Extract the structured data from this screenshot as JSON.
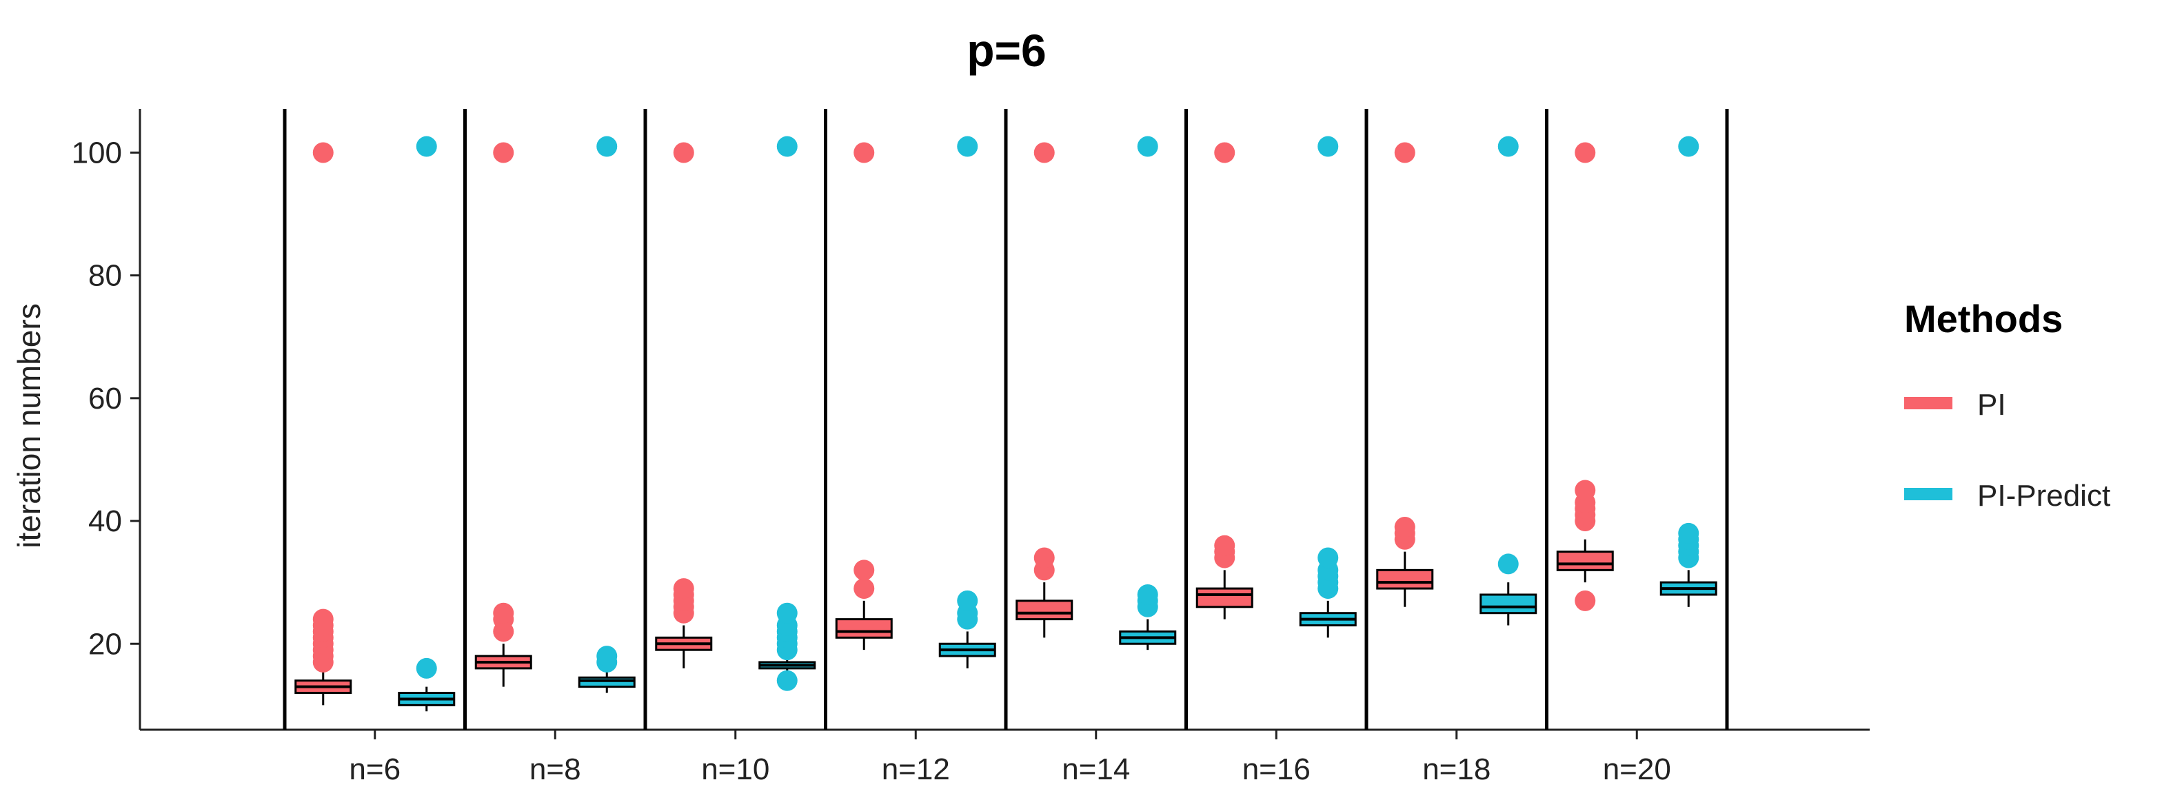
{
  "chart_data": {
    "type": "boxplot",
    "title": "p=6",
    "xlabel": "",
    "ylabel": "iteration numbers",
    "ylim": [
      6,
      106
    ],
    "yticks": [
      20,
      40,
      60,
      80,
      100
    ],
    "categories": [
      "n=6",
      "n=8",
      "n=10",
      "n=12",
      "n=14",
      "n=16",
      "n=18",
      "n=20"
    ],
    "legend": {
      "title": "Methods",
      "position": "right"
    },
    "series": [
      {
        "name": "PI",
        "color": "#F8636B",
        "boxes": [
          {
            "q1": 12,
            "median": 13,
            "q3": 14,
            "whisker_low": 10,
            "whisker_high": 16,
            "outliers": [
              17,
              18,
              19,
              20,
              21,
              22,
              23,
              24,
              100
            ]
          },
          {
            "q1": 16,
            "median": 17,
            "q3": 18,
            "whisker_low": 13,
            "whisker_high": 20,
            "outliers": [
              22,
              24,
              25,
              100
            ]
          },
          {
            "q1": 19,
            "median": 20,
            "q3": 21,
            "whisker_low": 16,
            "whisker_high": 23,
            "outliers": [
              25,
              26,
              27,
              28,
              29,
              100
            ]
          },
          {
            "q1": 21,
            "median": 22,
            "q3": 24,
            "whisker_low": 19,
            "whisker_high": 27,
            "outliers": [
              29,
              32,
              100
            ]
          },
          {
            "q1": 24,
            "median": 25,
            "q3": 27,
            "whisker_low": 21,
            "whisker_high": 30,
            "outliers": [
              32,
              34,
              100
            ]
          },
          {
            "q1": 26,
            "median": 28,
            "q3": 29,
            "whisker_low": 24,
            "whisker_high": 32,
            "outliers": [
              34,
              35,
              36,
              100
            ]
          },
          {
            "q1": 29,
            "median": 30,
            "q3": 32,
            "whisker_low": 26,
            "whisker_high": 35,
            "outliers": [
              37,
              38,
              39,
              100
            ]
          },
          {
            "q1": 32,
            "median": 33,
            "q3": 35,
            "whisker_low": 30,
            "whisker_high": 37,
            "outliers": [
              27,
              40,
              41,
              42,
              43,
              45,
              100
            ]
          }
        ]
      },
      {
        "name": "PI-Predict",
        "color": "#1FBFD9",
        "boxes": [
          {
            "q1": 10,
            "median": 11,
            "q3": 12,
            "whisker_low": 9,
            "whisker_high": 13,
            "outliers": [
              16,
              101
            ]
          },
          {
            "q1": 13,
            "median": 14,
            "q3": 14.5,
            "whisker_low": 12,
            "whisker_high": 16,
            "outliers": [
              17,
              18,
              101
            ]
          },
          {
            "q1": 16,
            "median": 16.5,
            "q3": 17,
            "whisker_low": 15,
            "whisker_high": 18,
            "outliers": [
              14,
              19,
              20,
              21,
              22,
              23,
              25,
              101
            ]
          },
          {
            "q1": 18,
            "median": 19,
            "q3": 20,
            "whisker_low": 16,
            "whisker_high": 22,
            "outliers": [
              24,
              25,
              27,
              101
            ]
          },
          {
            "q1": 20,
            "median": 21,
            "q3": 22,
            "whisker_low": 19,
            "whisker_high": 24,
            "outliers": [
              26,
              27,
              28,
              101
            ]
          },
          {
            "q1": 23,
            "median": 24,
            "q3": 25,
            "whisker_low": 21,
            "whisker_high": 27,
            "outliers": [
              29,
              30,
              31,
              32,
              34,
              101
            ]
          },
          {
            "q1": 25,
            "median": 26,
            "q3": 28,
            "whisker_low": 23,
            "whisker_high": 30,
            "outliers": [
              33,
              101
            ]
          },
          {
            "q1": 28,
            "median": 29,
            "q3": 30,
            "whisker_low": 26,
            "whisker_high": 32,
            "outliers": [
              34,
              35,
              36,
              37,
              38,
              101
            ]
          }
        ]
      }
    ]
  }
}
